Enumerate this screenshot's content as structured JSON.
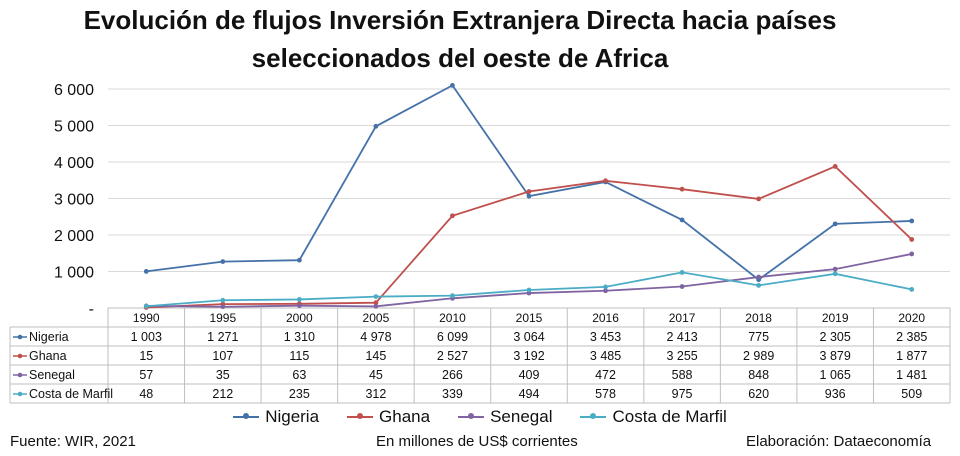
{
  "chart_data": {
    "type": "line",
    "title_line1": "Evolución de flujos Inversión Extranjera Directa hacia países",
    "title_line2": "seleccionados del oeste de Africa",
    "categories": [
      "1990",
      "1995",
      "2000",
      "2005",
      "2010",
      "2015",
      "2016",
      "2017",
      "2018",
      "2019",
      "2020"
    ],
    "ylim": [
      0,
      6000
    ],
    "yticks": [
      "-",
      "1 000",
      "2 000",
      "3 000",
      "4 000",
      "5 000",
      "6 000"
    ],
    "grid": true,
    "legend_position": "bottom",
    "series": [
      {
        "name": "Nigeria",
        "color": "#4472a8",
        "values": [
          1003,
          1271,
          1310,
          4978,
          6099,
          3064,
          3453,
          2413,
          775,
          2305,
          2385
        ],
        "labels": [
          "1 003",
          "1 271",
          "1 310",
          "4 978",
          "6 099",
          "3 064",
          "3 453",
          "2 413",
          "775",
          "2 305",
          "2 385"
        ]
      },
      {
        "name": "Ghana",
        "color": "#c0504d",
        "values": [
          15,
          107,
          115,
          145,
          2527,
          3192,
          3485,
          3255,
          2989,
          3879,
          1877
        ],
        "labels": [
          "15",
          "107",
          "115",
          "145",
          "2 527",
          "3 192",
          "3 485",
          "3 255",
          "2 989",
          "3 879",
          "1 877"
        ]
      },
      {
        "name": "Senegal",
        "color": "#8064a2",
        "values": [
          57,
          35,
          63,
          45,
          266,
          409,
          472,
          588,
          848,
          1065,
          1481
        ],
        "labels": [
          "57",
          "35",
          "63",
          "45",
          "266",
          "409",
          "472",
          "588",
          "848",
          "1 065",
          "1 481"
        ]
      },
      {
        "name": "Costa de Marfil",
        "color": "#4bacc6",
        "values": [
          48,
          212,
          235,
          312,
          339,
          494,
          578,
          975,
          620,
          936,
          509
        ],
        "labels": [
          "48",
          "212",
          "235",
          "312",
          "339",
          "494",
          "578",
          "975",
          "620",
          "936",
          "509"
        ]
      }
    ]
  },
  "footer": {
    "source": "Fuente: WIR, 2021",
    "units": "En millones de US$ corrientes",
    "credit": "Elaboración: Dataeconomía"
  }
}
